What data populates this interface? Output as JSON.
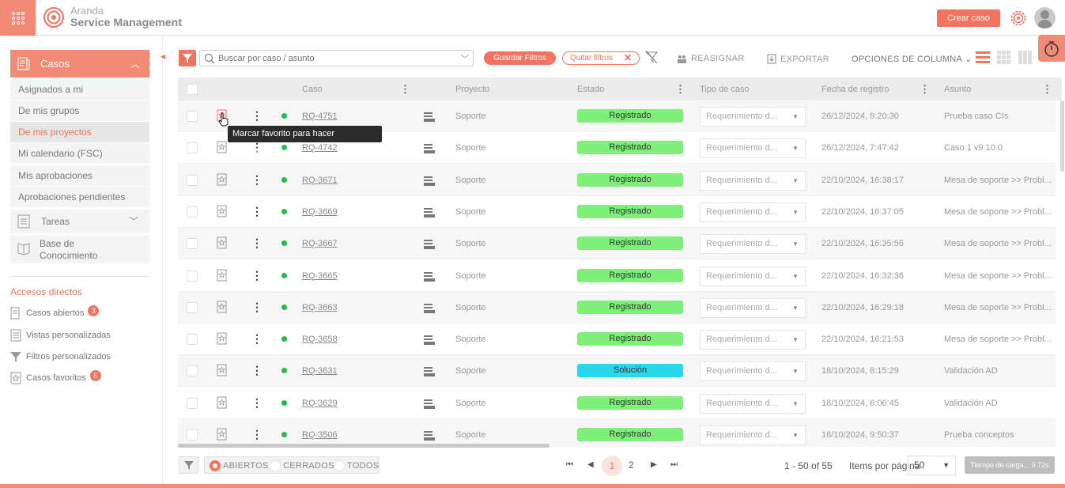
{
  "header": {
    "brand_line1": "Aranda",
    "brand_line2": "Service Management",
    "crear_caso_label": "Crear caso",
    "accent_color": "#f07460"
  },
  "sidebar": {
    "casos_label": "Casos",
    "items": [
      {
        "label": "Asignados a mi",
        "active": false
      },
      {
        "label": "De mis grupos",
        "active": false
      },
      {
        "label": "De mis proyectos",
        "active": true
      },
      {
        "label": "Mi calendario (FSC)",
        "active": false
      },
      {
        "label": "Mis aprobaciones",
        "active": false
      },
      {
        "label": "Aprobaciones pendientes",
        "active": false
      }
    ],
    "tareas_label": "Tareas",
    "base_line1": "Base de",
    "base_line2": "Conocimiento",
    "accesos_title": "Accesos directos",
    "accesos": [
      {
        "label": "Casos abiertos",
        "badge": "3",
        "icon": "open-cases-icon"
      },
      {
        "label": "Vistas personalizadas",
        "badge": "",
        "icon": "custom-views-icon"
      },
      {
        "label": "Filtros personalizados",
        "badge": "",
        "icon": "filter-icon"
      },
      {
        "label": "Casos favoritos",
        "badge": "5",
        "icon": "favorite-cases-icon"
      }
    ]
  },
  "toolbar": {
    "search_placeholder": "Buscar por caso / asunto",
    "guardar_filtros": "Guardar Filtros",
    "quitar_filtros": "Quitar filtros",
    "reasignar": "REASIGNAR",
    "exportar": "EXPORTAR",
    "opciones_columna": "OPCIONES DE COLUMNA"
  },
  "table": {
    "headers": {
      "caso": "Caso",
      "proyecto": "Proyecto",
      "estado": "Estado",
      "tipo": "Tipo de caso",
      "fecha": "Fecha de registro",
      "asunto": "Asunto"
    },
    "rows": [
      {
        "caso": "RQ-4751",
        "proyecto": "Soporte",
        "estado": "Registrado",
        "estado_color": "#7ef07a",
        "tipo": "Requerimiento d...",
        "fecha": "26/12/2024, 9:20:30",
        "asunto": "Prueba caso CIs"
      },
      {
        "caso": "RQ-4742",
        "proyecto": "Soporte",
        "estado": "Registrado",
        "estado_color": "#7ef07a",
        "tipo": "Requerimiento d...",
        "fecha": "26/12/2024, 7:47:42",
        "asunto": "Caso 1 v9.10.0"
      },
      {
        "caso": "RQ-3671",
        "proyecto": "Soporte",
        "estado": "Registrado",
        "estado_color": "#7ef07a",
        "tipo": "Requerimiento d...",
        "fecha": "22/10/2024, 16:38:17",
        "asunto": "Mesa de soporte >> Probl..."
      },
      {
        "caso": "RQ-3669",
        "proyecto": "Soporte",
        "estado": "Registrado",
        "estado_color": "#7ef07a",
        "tipo": "Requerimiento d...",
        "fecha": "22/10/2024, 16:37:05",
        "asunto": "Mesa de soporte >> Probl..."
      },
      {
        "caso": "RQ-3667",
        "proyecto": "Soporte",
        "estado": "Registrado",
        "estado_color": "#7ef07a",
        "tipo": "Requerimiento d...",
        "fecha": "22/10/2024, 16:35:56",
        "asunto": "Mesa de soporte >> Probl..."
      },
      {
        "caso": "RQ-3665",
        "proyecto": "Soporte",
        "estado": "Registrado",
        "estado_color": "#7ef07a",
        "tipo": "Requerimiento d...",
        "fecha": "22/10/2024, 16:32:36",
        "asunto": "Mesa de soporte >> Probl..."
      },
      {
        "caso": "RQ-3663",
        "proyecto": "Soporte",
        "estado": "Registrado",
        "estado_color": "#7ef07a",
        "tipo": "Requerimiento d...",
        "fecha": "22/10/2024, 16:29:18",
        "asunto": "Mesa de soporte >> Probl..."
      },
      {
        "caso": "RQ-3658",
        "proyecto": "Soporte",
        "estado": "Registrado",
        "estado_color": "#7ef07a",
        "tipo": "Requerimiento d...",
        "fecha": "22/10/2024, 16:21:53",
        "asunto": "Mesa de soporte >> Probl..."
      },
      {
        "caso": "RQ-3631",
        "proyecto": "Soporte",
        "estado": "Solución",
        "estado_color": "#2ad8ee",
        "tipo": "Requerimiento d...",
        "fecha": "18/10/2024, 6:15:29",
        "asunto": "Validación AD"
      },
      {
        "caso": "RQ-3629",
        "proyecto": "Soporte",
        "estado": "Registrado",
        "estado_color": "#7ef07a",
        "tipo": "Requerimiento d...",
        "fecha": "18/10/2024, 6:06:45",
        "asunto": "Validación AD"
      },
      {
        "caso": "RQ-3506",
        "proyecto": "Soporte",
        "estado": "Registrado",
        "estado_color": "#7ef07a",
        "tipo": "Requerimiento d...",
        "fecha": "16/10/2024, 9:50:37",
        "asunto": "Prueba conceptos"
      }
    ],
    "tooltip": "Marcar favorito para hacer seguimiento"
  },
  "footer": {
    "abiertos": "ABIERTOS",
    "cerrados": "CERRADOS",
    "todos": "TODOS",
    "current_page": "1",
    "next_page": "2",
    "range_text": "1 - 50 of 55",
    "items_label": "Items por página",
    "items_value": "50",
    "load_time": "Tiempo de carga... 0.72s"
  }
}
